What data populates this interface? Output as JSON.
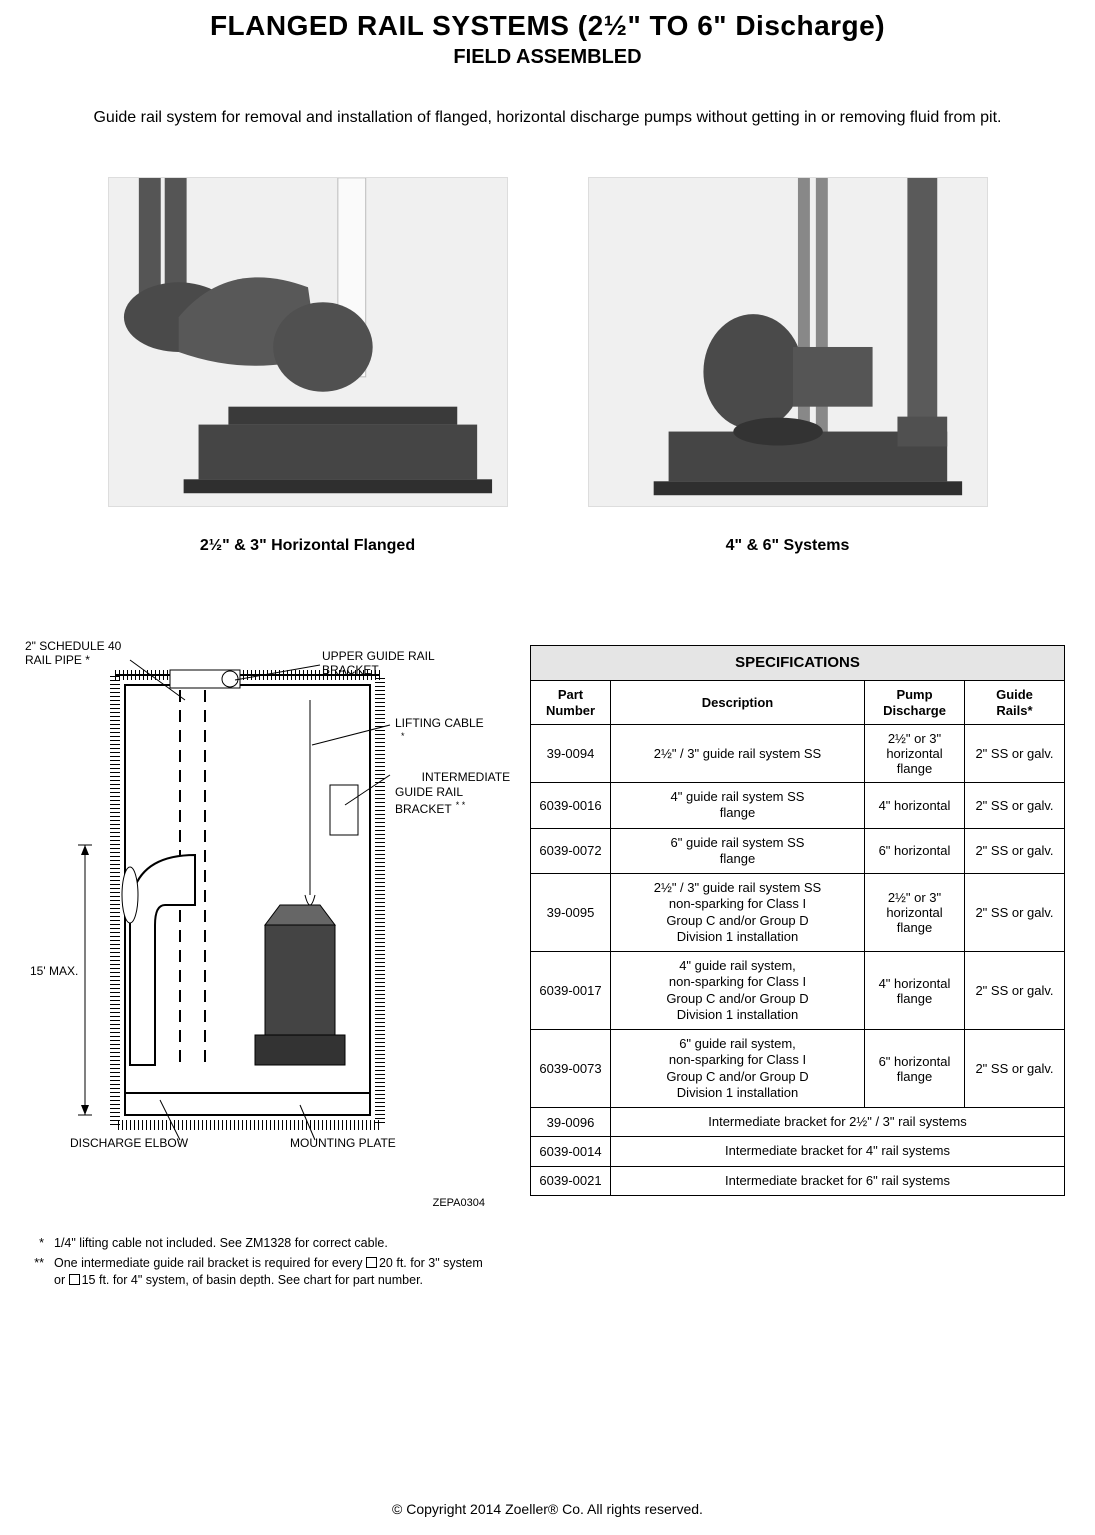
{
  "header": {
    "title": "FLANGED RAIL SYSTEMS (2½\" TO 6\" Discharge)",
    "subtitle": "FIELD ASSEMBLED"
  },
  "intro": "Guide rail system for removal and installation of flanged, horizontal discharge pumps without getting in or removing fluid from pit.",
  "products": [
    {
      "caption": "2½\" & 3\" Horizontal Flanged"
    },
    {
      "caption": "4\" & 6\" Systems"
    }
  ],
  "diagram": {
    "labels": {
      "rail_pipe": "2\" SCHEDULE 40\nRAIL PIPE *",
      "upper_bracket": "UPPER GUIDE RAIL BRACKET",
      "lifting_cable": "LIFTING CABLE",
      "lifting_cable_mark": "*",
      "intermediate": "INTERMEDIATE\nGUIDE RAIL\nBRACKET",
      "intermediate_mark": "* *",
      "max_depth": "15' MAX.",
      "discharge_elbow": "DISCHARGE ELBOW",
      "mounting_plate": "MOUNTING PLATE"
    },
    "code": "ZEPA0304"
  },
  "footnotes": {
    "one_mark": "*",
    "one_text": "1/4\" lifting cable not included.  See ZM1328 for correct cable.",
    "two_mark": "**",
    "two_text_a": "One intermediate guide rail bracket is required for every ",
    "two_text_b": "20 ft. for 3\" system or ",
    "two_text_c": "15 ft. for 4\" system, of basin depth.  See chart for part number."
  },
  "spec_table": {
    "title": "SPECIFICATIONS",
    "columns": [
      "Part\nNumber",
      "Description",
      "Pump\nDischarge",
      "Guide\nRails*"
    ],
    "rows": [
      {
        "pn": "39-0094",
        "desc": "2½\" / 3\" guide rail system SS",
        "pump": "2½\" or 3\"\nhorizontal\nflange",
        "rails": "2\" SS or galv."
      },
      {
        "pn": "6039-0016",
        "desc": "4\" guide rail system SS\nflange",
        "pump": "4\" horizontal",
        "rails": "2\" SS or galv."
      },
      {
        "pn": "6039-0072",
        "desc": "6\" guide rail system SS\nflange",
        "pump": "6\" horizontal",
        "rails": "2\" SS or galv."
      },
      {
        "pn": "39-0095",
        "desc": "2½\" / 3\" guide rail system SS\nnon-sparking for Class I\nGroup C and/or Group D\nDivision 1 installation",
        "pump": "2½\" or 3\"\nhorizontal\nflange",
        "rails": "2\" SS or galv."
      },
      {
        "pn": "6039-0017",
        "desc": "4\" guide rail system,\nnon-sparking for Class I\nGroup C and/or Group D\nDivision 1 installation",
        "pump": "4\" horizontal\nflange",
        "rails": "2\" SS or galv."
      },
      {
        "pn": "6039-0073",
        "desc": "6\" guide rail system,\nnon-sparking for Class I\nGroup C and/or Group D\nDivision 1 installation",
        "pump": "6\" horizontal\nflange",
        "rails": "2\" SS or galv."
      }
    ],
    "span_rows": [
      {
        "pn": "39-0096",
        "desc": "Intermediate bracket for 2½\" / 3\" rail systems"
      },
      {
        "pn": "6039-0014",
        "desc": "Intermediate bracket for 4\" rail systems"
      },
      {
        "pn": "6039-0021",
        "desc": "Intermediate bracket for 6\" rail systems"
      }
    ]
  },
  "copyright": "© Copyright 2014 Zoeller® Co. All rights reserved."
}
